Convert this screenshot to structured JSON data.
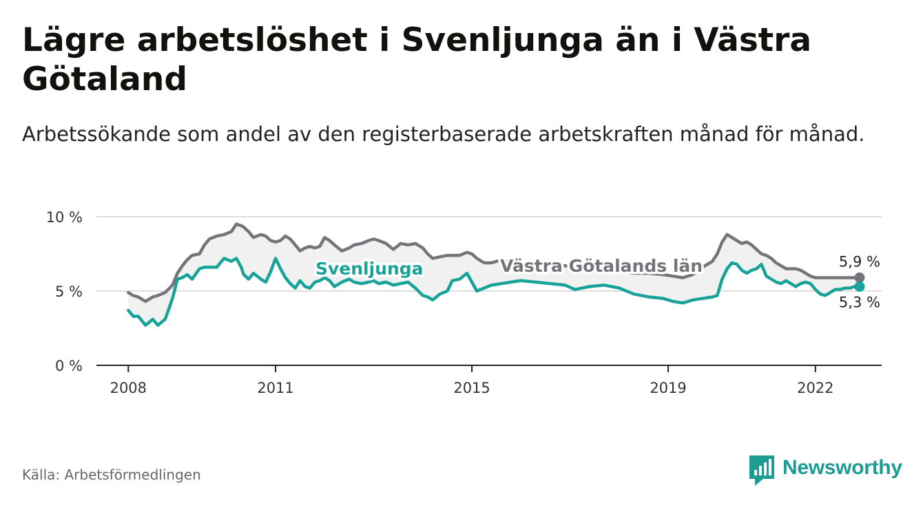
{
  "title": "Lägre arbetslöshet i Svenljunga än i Västra Götaland",
  "subtitle": "Arbetssökande som andel av den registerbaserade arbetskraften månad för månad.",
  "source": "Källa: Arbetsförmedlingen",
  "brand": {
    "name": "Newsworthy",
    "logo_icon": "bar-chart-icon",
    "color": "#1d9c94"
  },
  "chart_data": {
    "type": "line",
    "title": "Lägre arbetslöshet i Svenljunga än i Västra Götaland",
    "xlabel": "",
    "ylabel": "",
    "xlim": [
      2007.35,
      2023.35
    ],
    "ylim": [
      0,
      10
    ],
    "yticks": [
      0,
      5,
      10
    ],
    "ytick_labels": [
      "0 %",
      "5 %",
      "10 %"
    ],
    "xticks": [
      2008,
      2011,
      2015,
      2019,
      2022
    ],
    "xtick_labels": [
      "2008",
      "2011",
      "2015",
      "2019",
      "2022"
    ],
    "grid": "horizontal",
    "shade_between_series": true,
    "series": [
      {
        "name": "Västra Götalands län",
        "color": "#75747b",
        "end_label": "5,9 %",
        "x": [
          2008.0,
          2008.1,
          2008.2,
          2008.35,
          2008.5,
          2008.6,
          2008.75,
          2008.9,
          2009.0,
          2009.1,
          2009.2,
          2009.3,
          2009.45,
          2009.55,
          2009.65,
          2009.8,
          2009.95,
          2010.1,
          2010.2,
          2010.3,
          2010.35,
          2010.45,
          2010.55,
          2010.7,
          2010.8,
          2010.9,
          2011.0,
          2011.1,
          2011.2,
          2011.3,
          2011.4,
          2011.5,
          2011.6,
          2011.7,
          2011.8,
          2011.9,
          2012.0,
          2012.1,
          2012.2,
          2012.35,
          2012.5,
          2012.6,
          2012.75,
          2012.9,
          2013.0,
          2013.1,
          2013.25,
          2013.4,
          2013.55,
          2013.7,
          2013.85,
          2014.0,
          2014.1,
          2014.2,
          2014.35,
          2014.5,
          2014.6,
          2014.75,
          2014.9,
          2015.0,
          2015.1,
          2015.25,
          2015.4,
          2015.6,
          2015.8,
          2016.0,
          2016.3,
          2016.6,
          2016.9,
          2017.1,
          2017.4,
          2017.7,
          2018.0,
          2018.3,
          2018.6,
          2018.9,
          2019.1,
          2019.3,
          2019.5,
          2019.7,
          2019.9,
          2020.0,
          2020.1,
          2020.2,
          2020.3,
          2020.4,
          2020.5,
          2020.6,
          2020.7,
          2020.8,
          2020.9,
          2021.0,
          2021.1,
          2021.2,
          2021.3,
          2021.4,
          2021.5,
          2021.6,
          2021.7,
          2021.8,
          2021.9,
          2022.0,
          2022.1,
          2022.2,
          2022.3,
          2022.4,
          2022.5,
          2022.6,
          2022.7,
          2022.8,
          2022.9
        ],
        "y": [
          4.9,
          4.7,
          4.6,
          4.3,
          4.6,
          4.7,
          4.9,
          5.4,
          6.2,
          6.7,
          7.1,
          7.4,
          7.5,
          8.1,
          8.5,
          8.7,
          8.8,
          9.0,
          9.5,
          9.4,
          9.3,
          9.0,
          8.6,
          8.8,
          8.7,
          8.4,
          8.3,
          8.4,
          8.7,
          8.5,
          8.1,
          7.7,
          7.9,
          8.0,
          7.9,
          8.0,
          8.6,
          8.4,
          8.1,
          7.7,
          7.9,
          8.1,
          8.2,
          8.4,
          8.5,
          8.4,
          8.2,
          7.8,
          8.2,
          8.1,
          8.2,
          7.9,
          7.5,
          7.2,
          7.3,
          7.4,
          7.4,
          7.4,
          7.6,
          7.5,
          7.2,
          6.9,
          6.9,
          7.1,
          6.9,
          6.8,
          6.9,
          6.8,
          6.7,
          6.6,
          6.5,
          6.4,
          6.3,
          6.2,
          6.2,
          6.1,
          6.0,
          5.9,
          6.1,
          6.6,
          7.0,
          7.5,
          8.3,
          8.8,
          8.6,
          8.4,
          8.2,
          8.3,
          8.1,
          7.8,
          7.5,
          7.4,
          7.2,
          6.9,
          6.7,
          6.5,
          6.5,
          6.5,
          6.4,
          6.2,
          6.0,
          5.9,
          5.9,
          5.9,
          5.9,
          5.9,
          5.9,
          5.9,
          5.9,
          5.9,
          5.9
        ]
      },
      {
        "name": "Svenljunga",
        "color": "#17a398",
        "end_label": "5,3 %",
        "x": [
          2008.0,
          2008.1,
          2008.2,
          2008.35,
          2008.5,
          2008.6,
          2008.75,
          2008.9,
          2009.0,
          2009.1,
          2009.2,
          2009.3,
          2009.45,
          2009.55,
          2009.65,
          2009.8,
          2009.95,
          2010.1,
          2010.2,
          2010.3,
          2010.35,
          2010.45,
          2010.55,
          2010.7,
          2010.8,
          2010.9,
          2011.0,
          2011.1,
          2011.2,
          2011.3,
          2011.4,
          2011.5,
          2011.6,
          2011.7,
          2011.8,
          2011.9,
          2012.0,
          2012.1,
          2012.2,
          2012.35,
          2012.5,
          2012.6,
          2012.75,
          2012.9,
          2013.0,
          2013.1,
          2013.25,
          2013.4,
          2013.55,
          2013.7,
          2013.85,
          2014.0,
          2014.1,
          2014.2,
          2014.35,
          2014.5,
          2014.6,
          2014.75,
          2014.9,
          2015.0,
          2015.1,
          2015.25,
          2015.4,
          2015.6,
          2015.8,
          2016.0,
          2016.3,
          2016.6,
          2016.9,
          2017.1,
          2017.4,
          2017.7,
          2018.0,
          2018.3,
          2018.6,
          2018.9,
          2019.1,
          2019.3,
          2019.5,
          2019.7,
          2019.9,
          2020.0,
          2020.1,
          2020.2,
          2020.3,
          2020.4,
          2020.5,
          2020.6,
          2020.7,
          2020.8,
          2020.9,
          2021.0,
          2021.1,
          2021.2,
          2021.3,
          2021.4,
          2021.5,
          2021.6,
          2021.7,
          2021.8,
          2021.9,
          2022.0,
          2022.1,
          2022.2,
          2022.3,
          2022.4,
          2022.5,
          2022.6,
          2022.7,
          2022.8,
          2022.9
        ],
        "y": [
          3.7,
          3.3,
          3.3,
          2.7,
          3.1,
          2.7,
          3.1,
          4.5,
          5.8,
          5.9,
          6.1,
          5.8,
          6.5,
          6.6,
          6.6,
          6.6,
          7.2,
          7.0,
          7.2,
          6.6,
          6.1,
          5.8,
          6.2,
          5.8,
          5.6,
          6.3,
          7.2,
          6.5,
          5.9,
          5.5,
          5.2,
          5.7,
          5.3,
          5.2,
          5.6,
          5.7,
          5.9,
          5.7,
          5.3,
          5.6,
          5.8,
          5.6,
          5.5,
          5.6,
          5.7,
          5.5,
          5.6,
          5.4,
          5.5,
          5.6,
          5.2,
          4.7,
          4.6,
          4.4,
          4.8,
          5.0,
          5.7,
          5.8,
          6.2,
          5.6,
          5.0,
          5.2,
          5.4,
          5.5,
          5.6,
          5.7,
          5.6,
          5.5,
          5.4,
          5.1,
          5.3,
          5.4,
          5.2,
          4.8,
          4.6,
          4.5,
          4.3,
          4.2,
          4.4,
          4.5,
          4.6,
          4.7,
          5.8,
          6.5,
          6.9,
          6.8,
          6.4,
          6.2,
          6.4,
          6.5,
          6.8,
          6.0,
          5.8,
          5.6,
          5.5,
          5.7,
          5.5,
          5.3,
          5.5,
          5.6,
          5.5,
          5.1,
          4.8,
          4.7,
          4.9,
          5.1,
          5.1,
          5.2,
          5.2,
          5.3,
          5.3
        ]
      }
    ],
    "annotations": [
      {
        "text": "Svenljunga",
        "series": "Svenljunga"
      },
      {
        "text": "Västra Götalands län",
        "series": "Västra Götalands län"
      }
    ]
  }
}
